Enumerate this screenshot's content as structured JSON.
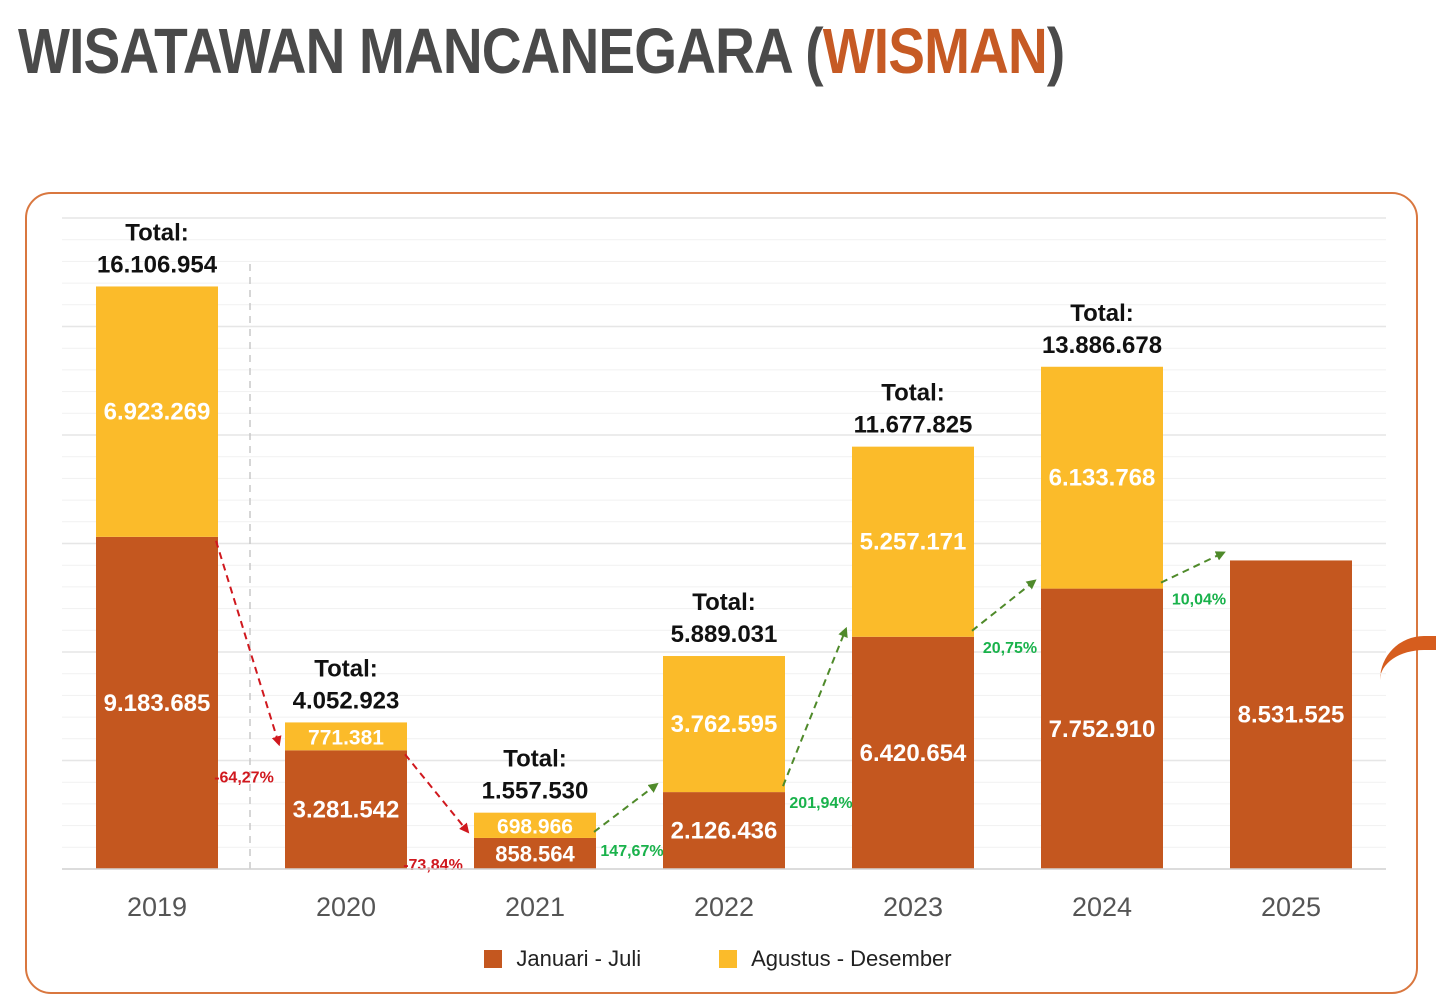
{
  "title": {
    "prefix": "WISATAWAN MANCANEGARA (",
    "accent": "WISMAN",
    "suffix": ")"
  },
  "colors": {
    "jan_jul": "#c4571f",
    "agu_des": "#fbbb2a",
    "decline": "#d0181e",
    "growth": "#19b24b",
    "growth_arrow": "#4f8a2a",
    "accent": "#c65a24"
  },
  "chart_data": {
    "type": "bar",
    "stacked": true,
    "categories": [
      "2019",
      "2020",
      "2021",
      "2022",
      "2023",
      "2024",
      "2025"
    ],
    "series": [
      {
        "name": "Januari - Juli",
        "values": [
          9183685,
          3281542,
          858564,
          2126436,
          6420654,
          7752910,
          8531525
        ],
        "labels": [
          "9.183.685",
          "3.281.542",
          "858.564",
          "2.126.436",
          "6.420.654",
          "7.752.910",
          "8.531.525"
        ]
      },
      {
        "name": "Agustus - Desember",
        "values": [
          6923269,
          771381,
          698966,
          3762595,
          5257171,
          6133768,
          null
        ],
        "labels": [
          "6.923.269",
          "771.381",
          "698.966",
          "3.762.595",
          "5.257.171",
          "6.133.768",
          ""
        ]
      }
    ],
    "totals": {
      "prefix": "Total:",
      "values": [
        "16.106.954",
        "4.052.923",
        "1.557.530",
        "5.889.031",
        "11.677.825",
        "13.886.678",
        ""
      ]
    },
    "changes": [
      {
        "from": "2019",
        "to": "2020",
        "label": "-64,27%",
        "direction": "down"
      },
      {
        "from": "2020",
        "to": "2021",
        "label": "-73,84%",
        "direction": "down"
      },
      {
        "from": "2021",
        "to": "2022",
        "label": "147,67%",
        "direction": "up"
      },
      {
        "from": "2022",
        "to": "2023",
        "label": "201,94%",
        "direction": "up"
      },
      {
        "from": "2023",
        "to": "2024",
        "label": "20,75%",
        "direction": "up"
      },
      {
        "from": "2024",
        "to": "2025",
        "label": "10,04%",
        "direction": "up"
      }
    ],
    "ylim": [
      0,
      18000000
    ],
    "grid": true,
    "legend_position": "bottom-center"
  }
}
